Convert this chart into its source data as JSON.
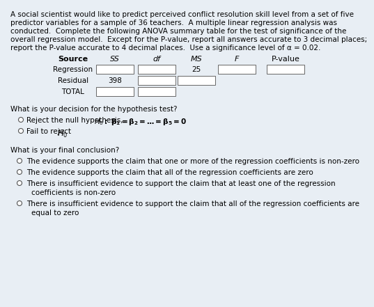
{
  "bg_color": "#e8eef4",
  "text_color": "#000000",
  "para_lines": [
    "A social scientist would like to predict perceived conflict resolution skill level from a set of five",
    "predictor variables for a sample of 36 teachers.  A multiple linear regression analysis was",
    "conducted.  Complete the following ANOVA summary table for the test of significance of the",
    "overall regression model.  Except for the P-value, report all answers accurate to 3 decimal places;",
    "report the P-value accurate to 4 decimal places.  Use a significance level of α = 0.02."
  ],
  "table_headers": [
    "Source",
    "SS",
    "df",
    "MS",
    "F",
    "P-value"
  ],
  "row1_label": "Regression",
  "row1_ms": "25",
  "row2_label": "Residual",
  "row2_ss": "398",
  "row3_label": "TOTAL",
  "decision_question": "What is your decision for the hypothesis test?",
  "decision_opt1_plain": "Reject the null hypothesis, ",
  "decision_opt2_plain": "Fail to reject ",
  "conclusion_question": "What is your final conclusion?",
  "conclusion_opt1": "The evidence supports the claim that one or more of the regression coefficients is non-zero",
  "conclusion_opt2": "The evidence supports the claim that all of the regression coefficients are zero",
  "conclusion_opt3a": "There is insufficient evidence to support the claim that at least one of the regression",
  "conclusion_opt3b": "coefficients is non-zero",
  "conclusion_opt4a": "There is insufficient evidence to support the claim that all of the regression coefficients are",
  "conclusion_opt4b": "equal to zero",
  "fs": 7.5,
  "lh": 13
}
